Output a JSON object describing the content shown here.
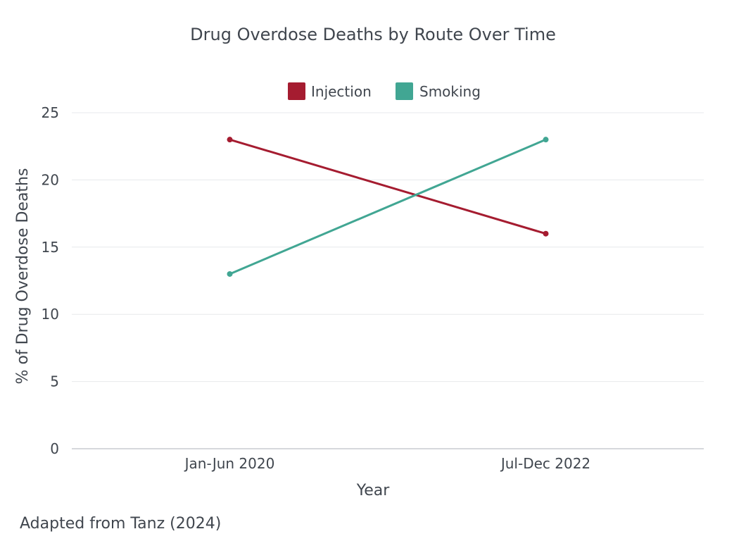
{
  "chart_data": {
    "type": "line",
    "title": "Drug Overdose Deaths by Route Over Time",
    "xlabel": "Year",
    "ylabel": "% of Drug Overdose Deaths",
    "categories": [
      "Jan-Jun 2020",
      "Jul-Dec 2022"
    ],
    "series": [
      {
        "name": "Injection",
        "values": [
          23,
          16
        ],
        "color": "#A51C30"
      },
      {
        "name": "Smoking",
        "values": [
          13,
          23
        ],
        "color": "#41A693"
      }
    ],
    "ylim": [
      0,
      25
    ],
    "yticks": [
      "0",
      "5",
      "10",
      "15",
      "20",
      "25"
    ],
    "grid": true,
    "legend": "top-center"
  },
  "source_note": "Adapted from Tanz (2024)"
}
